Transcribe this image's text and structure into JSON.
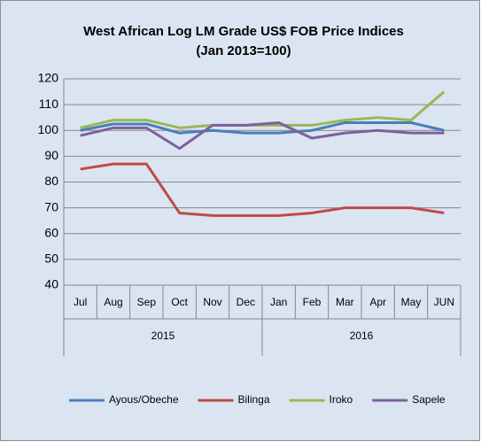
{
  "chart_data": {
    "type": "line",
    "title": "West African Log LM Grade US$ FOB Price Indices",
    "subtitle": "(Jan 2013=100)",
    "categories": [
      "Jul",
      "Aug",
      "Sep",
      "Oct",
      "Nov",
      "Dec",
      "Jan",
      "Feb",
      "Mar",
      "Apr",
      "May",
      "JUN"
    ],
    "group_labels": [
      "2015",
      "2016"
    ],
    "series": [
      {
        "name": "Ayous/Obeche",
        "color": "#4a7ebb",
        "values": [
          100,
          102.5,
          102.5,
          99,
          100,
          99,
          99,
          100,
          103,
          103,
          103,
          100
        ]
      },
      {
        "name": "Bilinga",
        "color": "#be4b48",
        "values": [
          85,
          87,
          87,
          68,
          67,
          67,
          67,
          68,
          70,
          70,
          70,
          68
        ]
      },
      {
        "name": "Iroko",
        "color": "#98b954",
        "values": [
          101,
          104,
          104,
          101,
          102,
          102,
          102,
          102,
          104,
          105,
          104,
          115
        ]
      },
      {
        "name": "Sapele",
        "color": "#7d60a0",
        "values": [
          98,
          101,
          101,
          93,
          102,
          102,
          103,
          97,
          99,
          100,
          99,
          99
        ]
      }
    ],
    "ylim": [
      40,
      120
    ],
    "yticks": [
      40,
      50,
      60,
      70,
      80,
      90,
      100,
      110,
      120
    ],
    "grid": true,
    "legend": "bottom"
  }
}
